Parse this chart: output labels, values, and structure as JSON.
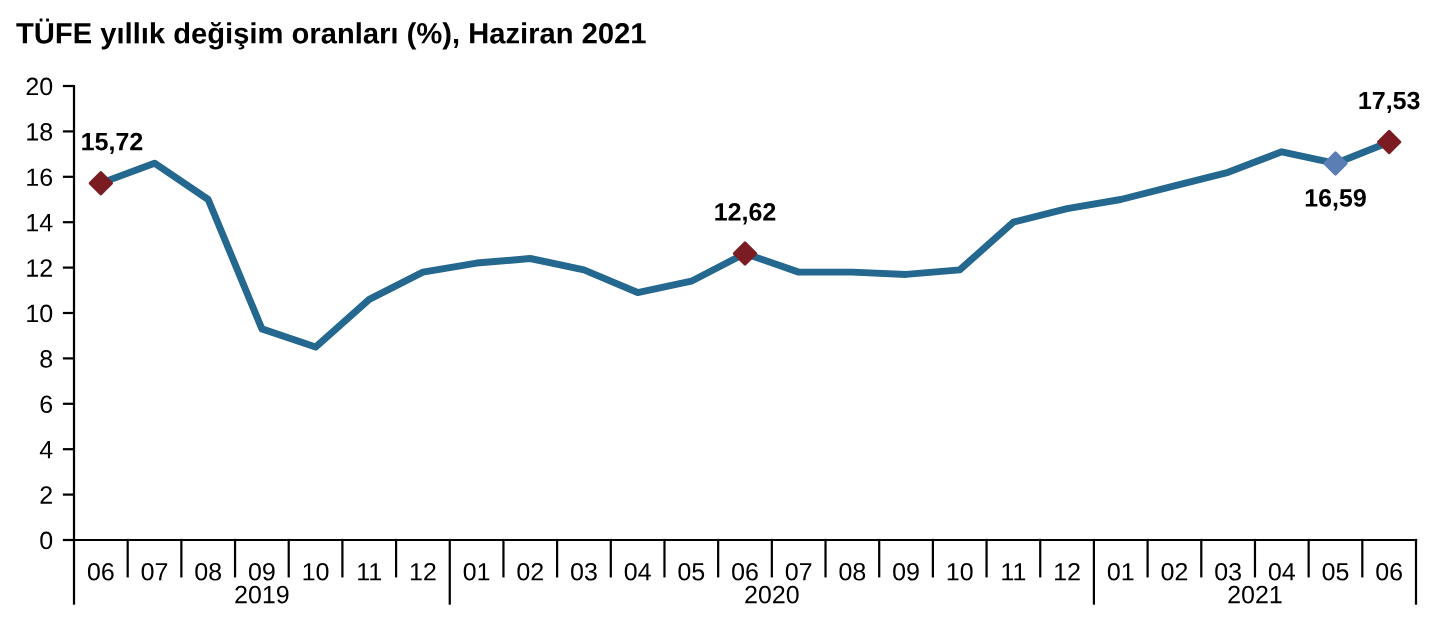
{
  "chart_data": {
    "type": "line",
    "title": "TÜFE yıllık değişim oranları (%), Haziran 2021",
    "categories": [
      "06",
      "07",
      "08",
      "09",
      "10",
      "11",
      "12",
      "01",
      "02",
      "03",
      "04",
      "05",
      "06",
      "07",
      "08",
      "09",
      "10",
      "11",
      "12",
      "01",
      "02",
      "03",
      "04",
      "05",
      "06"
    ],
    "series": [
      {
        "color": "#24678f",
        "marker": "none",
        "values": [
          15.72,
          16.6,
          15.0,
          9.3,
          8.5,
          10.6,
          11.8,
          12.2,
          12.4,
          11.9,
          10.9,
          11.4,
          12.62,
          11.8,
          11.8,
          11.7,
          11.9,
          14.0,
          14.6,
          15.0,
          15.6,
          16.2,
          17.1,
          16.59,
          17.53
        ]
      },
      {
        "type": "scatter",
        "marker": "diamond",
        "values": [
          15.72,
          null,
          null,
          null,
          null,
          null,
          null,
          null,
          null,
          null,
          null,
          null,
          12.62,
          null,
          null,
          null,
          null,
          null,
          null,
          null,
          null,
          null,
          null,
          16.59,
          17.53
        ],
        "colors": [
          "#7b1c22",
          null,
          null,
          null,
          null,
          null,
          null,
          null,
          null,
          null,
          null,
          null,
          "#7b1c22",
          null,
          null,
          null,
          null,
          null,
          null,
          null,
          null,
          null,
          null,
          "#5b7fb5",
          "#7b1c22"
        ],
        "value_labels": [
          "15,72",
          null,
          null,
          null,
          null,
          null,
          null,
          null,
          null,
          null,
          null,
          null,
          "12,62",
          null,
          null,
          null,
          null,
          null,
          null,
          null,
          null,
          null,
          null,
          "16,59",
          "17,53"
        ]
      }
    ],
    "annotations": [
      "2019",
      "2020",
      "2021"
    ],
    "ylim": [
      0,
      20
    ],
    "yticks": [
      0,
      2,
      4,
      6,
      8,
      10,
      12,
      14,
      16,
      18,
      20
    ],
    "grid": false,
    "line_style": "solid"
  }
}
